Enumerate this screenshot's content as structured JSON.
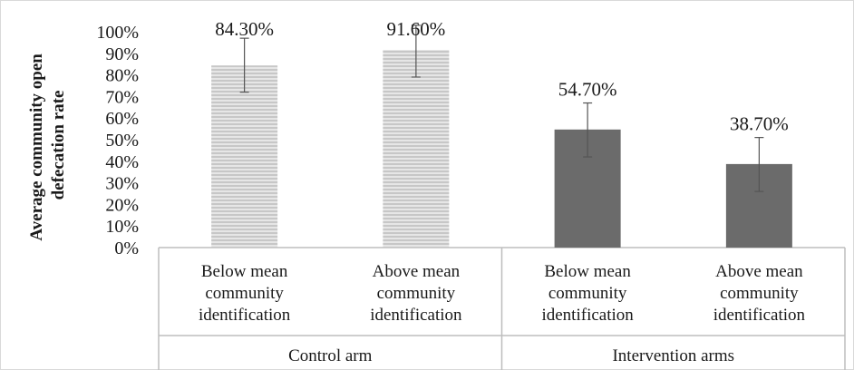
{
  "chart_data": {
    "type": "bar",
    "ylabel": "Average community open defecation rate",
    "ylim": [
      0,
      1.0
    ],
    "yticks": [
      "0%",
      "10%",
      "20%",
      "30%",
      "40%",
      "50%",
      "60%",
      "70%",
      "80%",
      "90%",
      "100%"
    ],
    "categories": [
      [
        "Below mean",
        "community",
        "identification"
      ],
      [
        "Above mean",
        "community",
        "identification"
      ],
      [
        "Below mean",
        "community",
        "identification"
      ],
      [
        "Above mean",
        "community",
        "identification"
      ]
    ],
    "groups": [
      {
        "label": "Control arm",
        "categories": [
          0,
          1
        ]
      },
      {
        "label": "Intervention arms",
        "categories": [
          2,
          3
        ]
      }
    ],
    "values": [
      0.843,
      0.916,
      0.547,
      0.387
    ],
    "value_labels": [
      "84.30%",
      "91.60%",
      "54.70%",
      "38.70%"
    ],
    "error_bars": [
      {
        "low": 0.72,
        "high": 0.97
      },
      {
        "low": 0.79,
        "high": 1.03
      },
      {
        "low": 0.42,
        "high": 0.67
      },
      {
        "low": 0.26,
        "high": 0.51
      }
    ],
    "bar_styles": [
      "hatched-light",
      "hatched-light",
      "solid-dark",
      "solid-dark"
    ],
    "colors": {
      "hatch_fill": "#e6e6e6",
      "hatch_line": "#a8a8a8",
      "dark_fill": "#6b6b6b",
      "axis": "#bdbdbd",
      "error_bar": "#555555"
    },
    "grid": false,
    "legend": "none"
  }
}
